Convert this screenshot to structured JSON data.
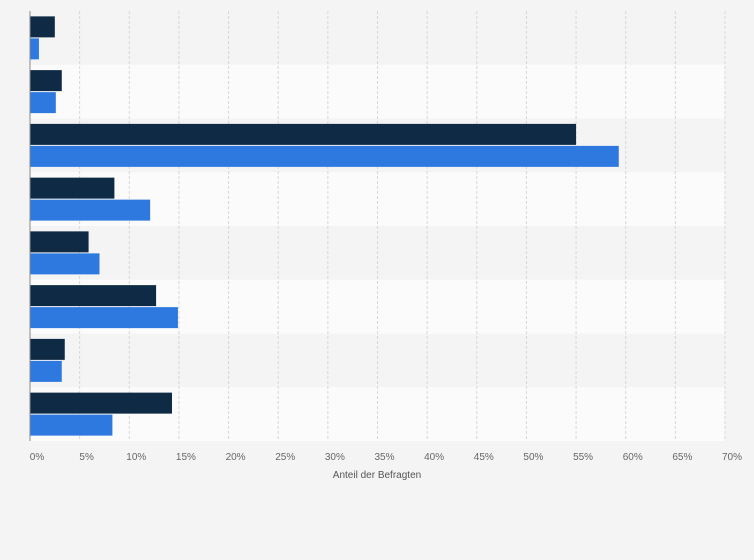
{
  "chart_data": {
    "type": "bar",
    "orientation": "horizontal",
    "title": "",
    "xlabel": "Anteil der Befragten",
    "ylabel": "",
    "xlim": [
      0,
      70
    ],
    "x_ticks": [
      "0%",
      "5%",
      "10%",
      "15%",
      "20%",
      "25%",
      "30%",
      "35%",
      "40%",
      "45%",
      "50%",
      "55%",
      "60%",
      "65%",
      "70%"
    ],
    "categories": [
      "",
      "",
      "",
      "",
      "",
      "",
      "",
      ""
    ],
    "series": [
      {
        "color": "#0f2a44",
        "values": [
          2.5,
          3.2,
          55.0,
          8.5,
          5.9,
          12.7,
          3.5,
          14.3
        ]
      },
      {
        "color": "#2e79e0",
        "values": [
          0.9,
          2.6,
          59.3,
          12.1,
          7.0,
          14.9,
          3.2,
          8.3
        ]
      }
    ],
    "grid": true,
    "legend": "none"
  }
}
